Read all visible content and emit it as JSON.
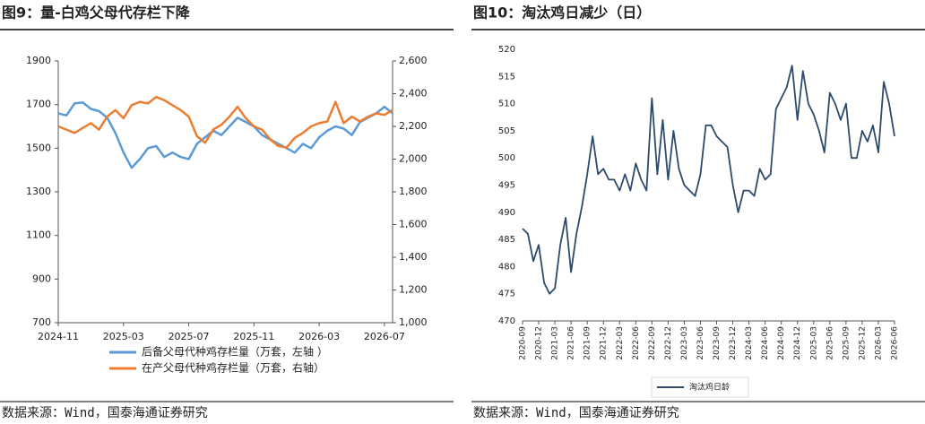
{
  "chart_data": [
    {
      "type": "line",
      "title": "图9：量-白鸡父母代存栏下降",
      "source": "数据来源：Wind，国泰海通证券研究",
      "categories": [
        "2024-11",
        null,
        null,
        null,
        null,
        null,
        null,
        null,
        "2025-03",
        null,
        null,
        null,
        null,
        null,
        null,
        null,
        "2025-07",
        null,
        null,
        null,
        null,
        null,
        null,
        null,
        "2025-11",
        null,
        null,
        null,
        null,
        null,
        null,
        null,
        "2026-03",
        null,
        null,
        null,
        null,
        null,
        null,
        null,
        "2026-07",
        null
      ],
      "ylim": [
        700,
        1900
      ],
      "yticks": [
        700,
        900,
        1100,
        1300,
        1500,
        1700,
        1900
      ],
      "y2lim": [
        1000,
        2600
      ],
      "y2ticks": [
        {
          "value": 1000,
          "label": "1,000"
        },
        {
          "value": 1200,
          "label": "1,200"
        },
        {
          "value": 1400,
          "label": "1,400"
        },
        {
          "value": 1600,
          "label": "1,600"
        },
        {
          "value": 1800,
          "label": "1,800"
        },
        {
          "value": 2000,
          "label": "2,000"
        },
        {
          "value": 2200,
          "label": "2,200"
        },
        {
          "value": 2400,
          "label": "2,400"
        },
        {
          "value": 2600,
          "label": "2,600"
        }
      ],
      "series": [
        {
          "name": "后备父母代种鸡存栏量（万套，左轴 ）",
          "color": "#5b9bd5",
          "values": [
            1660,
            1650,
            1705,
            1710,
            1680,
            1670,
            1640,
            1570,
            1480,
            1410,
            1450,
            1500,
            1510,
            1460,
            1480,
            1460,
            1450,
            1520,
            1550,
            1580,
            1560,
            1600,
            1640,
            1620,
            1600,
            1560,
            1540,
            1520,
            1500,
            1480,
            1520,
            1500,
            1550,
            1580,
            1600,
            1590,
            1560,
            1620,
            1640,
            1660,
            1690,
            1660
          ]
        },
        {
          "name": "在产父母代种鸡存栏量（万套，右轴）",
          "color": "#ed7d31",
          "axis": "y2",
          "values": [
            2200,
            2180,
            2160,
            2190,
            2220,
            2180,
            2260,
            2300,
            2250,
            2330,
            2350,
            2340,
            2380,
            2360,
            2330,
            2300,
            2260,
            2140,
            2100,
            2180,
            2210,
            2260,
            2320,
            2250,
            2200,
            2180,
            2120,
            2080,
            2070,
            2130,
            2160,
            2200,
            2220,
            2230,
            2350,
            2220,
            2260,
            2230,
            2260,
            2280,
            2270,
            2300
          ]
        }
      ]
    },
    {
      "type": "line",
      "title": "图10：淘汰鸡日减少（日）",
      "source": "数据来源：Wind，国泰海通证券研究",
      "categories": [
        "2020-09",
        null,
        null,
        "2020-12",
        null,
        null,
        "2021-03",
        null,
        null,
        "2021-06",
        null,
        null,
        "2021-09",
        null,
        null,
        "2021-12",
        null,
        null,
        "2022-03",
        null,
        null,
        "2022-06",
        null,
        null,
        "2022-09",
        null,
        null,
        "2022-12",
        null,
        null,
        "2023-03",
        null,
        null,
        "2023-06",
        null,
        null,
        "2023-09",
        null,
        null,
        "2023-12",
        null,
        null,
        "2024-03",
        null,
        null,
        "2024-06",
        null,
        null,
        "2024-09",
        null,
        null,
        "2024-12",
        null,
        null,
        "2025-03",
        null,
        null,
        "2025-06",
        null,
        null,
        "2025-09",
        null,
        null,
        "2025-12",
        null,
        null,
        "2026-03",
        null,
        null,
        "2026-06"
      ],
      "ylim": [
        470,
        520
      ],
      "yticks": [
        470,
        475,
        480,
        485,
        490,
        495,
        500,
        505,
        510,
        515,
        520
      ],
      "series": [
        {
          "name": "淘汰鸡日龄",
          "color": "#2e4a6b",
          "values": [
            487,
            486,
            481,
            484,
            477,
            475,
            476,
            484,
            489,
            479,
            486,
            491,
            497,
            504,
            497,
            498,
            496,
            496,
            494,
            497,
            494,
            499,
            496,
            494,
            511,
            497,
            507,
            496,
            505,
            498,
            495,
            494,
            493,
            497,
            506,
            506,
            504,
            503,
            502,
            495,
            490,
            494,
            494,
            493,
            498,
            496,
            497,
            509,
            511,
            513,
            517,
            507,
            516,
            510,
            508,
            505,
            501,
            512,
            510,
            507,
            510,
            500,
            500,
            505,
            503,
            506,
            501,
            514,
            510,
            504
          ]
        }
      ]
    }
  ]
}
